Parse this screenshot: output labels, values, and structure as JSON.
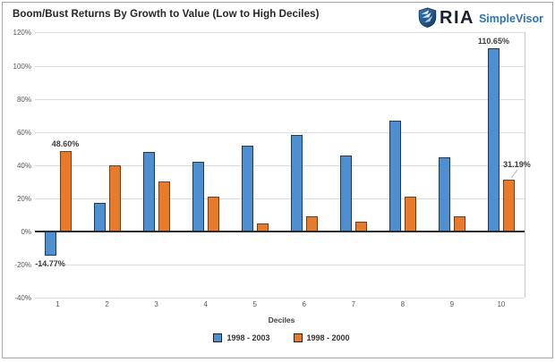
{
  "title": "Boom/Bust Returns By Growth to Value (Low to High Deciles)",
  "logo": {
    "ria": "RIA",
    "simplevisor": "SimpleVisor",
    "shield_icon": "ria-shield-icon"
  },
  "chart_data": {
    "type": "bar",
    "categories": [
      "1",
      "2",
      "3",
      "4",
      "5",
      "6",
      "7",
      "8",
      "9",
      "10"
    ],
    "series": [
      {
        "name": "1998 - 2003",
        "color": "#4E8FD2",
        "border_color": "#1F3A57",
        "values": [
          -14.77,
          17,
          48,
          42,
          52,
          58,
          46,
          67,
          45,
          110.65
        ]
      },
      {
        "name": "1998 - 2000",
        "color": "#E87A2C",
        "border_color": "#7A3B11",
        "values": [
          48.6,
          40,
          30,
          21,
          5,
          9,
          6,
          21,
          9,
          31.19
        ]
      }
    ],
    "xlabel": "Deciles",
    "ylim": [
      -40,
      120
    ],
    "ytick_step": 20,
    "ytick_suffix": "%",
    "grid": true,
    "legend_position": "bottom",
    "annotations": [
      {
        "text": "-14.77%",
        "decile": 1,
        "series": 0,
        "position": "below"
      },
      {
        "text": "48.60%",
        "decile": 1,
        "series": 1,
        "position": "above"
      },
      {
        "text": "110.65%",
        "decile": 10,
        "series": 0,
        "position": "above"
      },
      {
        "text": "31.19%",
        "decile": 10,
        "series": 1,
        "position": "above-right",
        "leader": true
      }
    ]
  },
  "colors": {
    "gridline": "#dcdcdc",
    "axis_text": "#595959",
    "zero_line": "#2b2b2b",
    "plot_right_border": "#c8c8c8",
    "title_text": "#262626",
    "simplevisor_blue": "#2e74b5",
    "shield_dark_blue": "#16365c",
    "shield_light_blue": "#2f7bc0"
  }
}
